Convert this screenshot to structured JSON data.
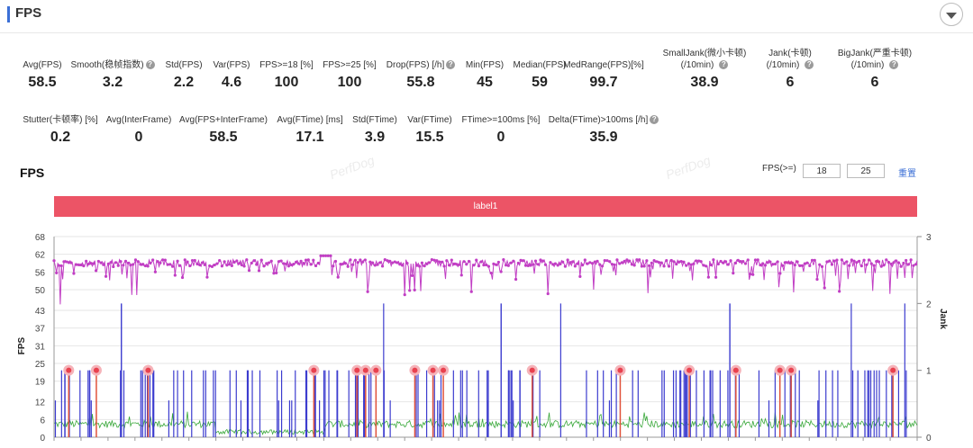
{
  "header": {
    "title": "FPS",
    "toggle_icon": "chevron-down-icon"
  },
  "metrics_row1": [
    {
      "label": "Avg(FPS)",
      "value": "58.5",
      "help": false
    },
    {
      "label": "Smooth(稳帧指数)",
      "value": "3.2",
      "help": true
    },
    {
      "label": "Std(FPS)",
      "value": "2.2",
      "help": false
    },
    {
      "label": "Var(FPS)",
      "value": "4.6",
      "help": false
    },
    {
      "label": "FPS>=18 [%]",
      "value": "100",
      "help": false
    },
    {
      "label": "FPS>=25 [%]",
      "value": "100",
      "help": false
    },
    {
      "label": "Drop(FPS) [/h]",
      "value": "55.8",
      "help": true
    },
    {
      "label": "Min(FPS)",
      "value": "45",
      "help": false
    },
    {
      "label": "Median(FPS)",
      "value": "59",
      "help": false
    },
    {
      "label": "MedRange(FPS)[%]",
      "value": "99.7",
      "help": false
    },
    {
      "label": "SmallJank(微小卡顿)",
      "label2": "(/10min)",
      "value": "38.9",
      "help": true
    },
    {
      "label": "Jank(卡顿)",
      "label2": "(/10min)",
      "value": "6",
      "help": true
    },
    {
      "label": "BigJank(严重卡顿)",
      "label2": "(/10min)",
      "value": "6",
      "help": true
    }
  ],
  "metrics_row2": [
    {
      "label": "Stutter(卡顿率) [%]",
      "value": "0.2",
      "help": false
    },
    {
      "label": "Avg(InterFrame)",
      "value": "0",
      "help": false
    },
    {
      "label": "Avg(FPS+InterFrame)",
      "value": "58.5",
      "help": false
    },
    {
      "label": "Avg(FTime) [ms]",
      "value": "17.1",
      "help": false
    },
    {
      "label": "Std(FTime)",
      "value": "3.9",
      "help": false
    },
    {
      "label": "Var(FTime)",
      "value": "15.5",
      "help": false
    },
    {
      "label": "FTime>=100ms [%]",
      "value": "0",
      "help": false
    },
    {
      "label": "Delta(FTime)>100ms [/h]",
      "value": "35.9",
      "help": true
    }
  ],
  "watermark": "PerfDog",
  "chart_section": {
    "title": "FPS",
    "threshold_label": "FPS(>=)",
    "threshold_low": "18",
    "threshold_high": "25",
    "reset_label": "重置",
    "band_label": "label1"
  },
  "chart_data": {
    "type": "line",
    "title": "FPS",
    "ylabel": "FPS",
    "y2label": "Jank",
    "y_ticks": [
      "0",
      "6",
      "12",
      "19",
      "25",
      "31",
      "37",
      "43",
      "50",
      "56",
      "62",
      "68"
    ],
    "y2_ticks": [
      "0",
      "1",
      "2",
      "3"
    ],
    "ylim": [
      0,
      68
    ],
    "y2lim": [
      0,
      3
    ],
    "grid": true,
    "colors": {
      "fps": "#c13ec4",
      "jank": "#3c3ccf",
      "ftime": "#39a83a",
      "bigjank": "#e0523b",
      "marker": "#e8414f"
    },
    "series": [
      {
        "name": "FPS",
        "typical": 59,
        "min": 45,
        "max": 62
      },
      {
        "name": "Jank",
        "note": "vertical spikes 1..2"
      },
      {
        "name": "FTime"
      }
    ],
    "jank_markers_at_fraction": [
      0.017,
      0.049,
      0.109,
      0.301,
      0.351,
      0.361,
      0.373,
      0.418,
      0.439,
      0.451,
      0.554,
      0.656,
      0.736,
      0.79,
      0.841,
      0.854,
      0.972
    ]
  }
}
